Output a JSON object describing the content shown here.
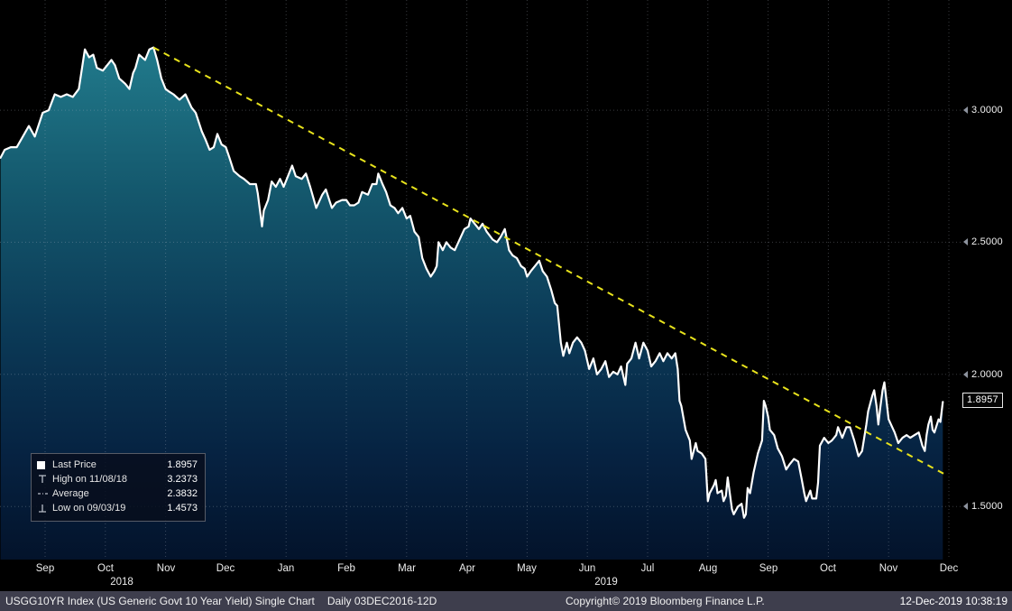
{
  "chart_data": {
    "type": "line",
    "title": "USGG10YR Index (US Generic Govt 10 Year Yield) Single Chart",
    "period": "Daily 03DEC2016-12D",
    "x_unit": "months since 2018-09-01 (fractional)",
    "x_axis": {
      "months": [
        "Sep",
        "Oct",
        "Nov",
        "Dec",
        "Jan",
        "Feb",
        "Mar",
        "Apr",
        "May",
        "Jun",
        "Jul",
        "Aug",
        "Sep",
        "Oct",
        "Nov",
        "Dec"
      ],
      "years": [
        {
          "label": "2018",
          "center_m": 1.74
        },
        {
          "label": "2019",
          "center_m": 9.78
        }
      ]
    },
    "y_axis": {
      "range": [
        1.299,
        3.417
      ],
      "ticks": [
        {
          "value": 3.0,
          "label": "3.0000"
        },
        {
          "value": 2.5,
          "label": "2.5000"
        },
        {
          "value": 2.0,
          "label": "2.0000"
        },
        {
          "value": 1.5,
          "label": "1.5000"
        }
      ]
    },
    "series": [
      {
        "name": "Last Price",
        "color": "#ffffff",
        "points": [
          [
            -0.27,
            2.82
          ],
          [
            -0.2,
            2.85
          ],
          [
            -0.1,
            2.86
          ],
          [
            0,
            2.86
          ],
          [
            0.1,
            2.9
          ],
          [
            0.2,
            2.94
          ],
          [
            0.3,
            2.9
          ],
          [
            0.43,
            2.99
          ],
          [
            0.53,
            3.0
          ],
          [
            0.63,
            3.06
          ],
          [
            0.73,
            3.05
          ],
          [
            0.83,
            3.06
          ],
          [
            0.93,
            3.05
          ],
          [
            1.03,
            3.08
          ],
          [
            1.13,
            3.23
          ],
          [
            1.2,
            3.2
          ],
          [
            1.27,
            3.21
          ],
          [
            1.33,
            3.16
          ],
          [
            1.43,
            3.15
          ],
          [
            1.5,
            3.17
          ],
          [
            1.57,
            3.19
          ],
          [
            1.63,
            3.17
          ],
          [
            1.7,
            3.12
          ],
          [
            1.8,
            3.1
          ],
          [
            1.87,
            3.08
          ],
          [
            1.93,
            3.14
          ],
          [
            1.97,
            3.16
          ],
          [
            2.03,
            3.21
          ],
          [
            2.13,
            3.19
          ],
          [
            2.2,
            3.23
          ],
          [
            2.27,
            3.2373
          ],
          [
            2.33,
            3.19
          ],
          [
            2.4,
            3.12
          ],
          [
            2.47,
            3.08
          ],
          [
            2.53,
            3.07
          ],
          [
            2.6,
            3.06
          ],
          [
            2.7,
            3.04
          ],
          [
            2.8,
            3.06
          ],
          [
            2.9,
            3.01
          ],
          [
            2.97,
            2.99
          ],
          [
            3.07,
            2.92
          ],
          [
            3.13,
            2.89
          ],
          [
            3.2,
            2.85
          ],
          [
            3.27,
            2.86
          ],
          [
            3.33,
            2.91
          ],
          [
            3.4,
            2.87
          ],
          [
            3.47,
            2.86
          ],
          [
            3.53,
            2.82
          ],
          [
            3.6,
            2.77
          ],
          [
            3.7,
            2.75
          ],
          [
            3.77,
            2.74
          ],
          [
            3.87,
            2.72
          ],
          [
            3.97,
            2.72
          ],
          [
            4.0,
            2.685
          ],
          [
            4.07,
            2.56
          ],
          [
            4.1,
            2.62
          ],
          [
            4.17,
            2.66
          ],
          [
            4.23,
            2.73
          ],
          [
            4.3,
            2.71
          ],
          [
            4.37,
            2.74
          ],
          [
            4.43,
            2.71
          ],
          [
            4.5,
            2.75
          ],
          [
            4.57,
            2.79
          ],
          [
            4.63,
            2.75
          ],
          [
            4.73,
            2.74
          ],
          [
            4.8,
            2.76
          ],
          [
            4.87,
            2.71
          ],
          [
            4.97,
            2.63
          ],
          [
            5.07,
            2.68
          ],
          [
            5.13,
            2.7
          ],
          [
            5.2,
            2.65
          ],
          [
            5.23,
            2.63
          ],
          [
            5.3,
            2.65
          ],
          [
            5.4,
            2.66
          ],
          [
            5.47,
            2.66
          ],
          [
            5.53,
            2.64
          ],
          [
            5.6,
            2.64
          ],
          [
            5.67,
            2.65
          ],
          [
            5.73,
            2.69
          ],
          [
            5.83,
            2.68
          ],
          [
            5.9,
            2.72
          ],
          [
            5.97,
            2.72
          ],
          [
            6.0,
            2.76
          ],
          [
            6.07,
            2.72
          ],
          [
            6.13,
            2.69
          ],
          [
            6.2,
            2.64
          ],
          [
            6.27,
            2.63
          ],
          [
            6.33,
            2.61
          ],
          [
            6.4,
            2.63
          ],
          [
            6.47,
            2.59
          ],
          [
            6.53,
            2.6
          ],
          [
            6.6,
            2.54
          ],
          [
            6.67,
            2.52
          ],
          [
            6.73,
            2.44
          ],
          [
            6.8,
            2.4
          ],
          [
            6.87,
            2.37
          ],
          [
            6.93,
            2.39
          ],
          [
            6.97,
            2.41
          ],
          [
            7.0,
            2.5
          ],
          [
            7.07,
            2.47
          ],
          [
            7.13,
            2.5
          ],
          [
            7.2,
            2.48
          ],
          [
            7.27,
            2.47
          ],
          [
            7.33,
            2.5
          ],
          [
            7.43,
            2.55
          ],
          [
            7.5,
            2.56
          ],
          [
            7.53,
            2.59
          ],
          [
            7.6,
            2.57
          ],
          [
            7.67,
            2.55
          ],
          [
            7.73,
            2.57
          ],
          [
            7.8,
            2.54
          ],
          [
            7.9,
            2.51
          ],
          [
            7.97,
            2.5
          ],
          [
            8.03,
            2.52
          ],
          [
            8.1,
            2.55
          ],
          [
            8.17,
            2.47
          ],
          [
            8.23,
            2.45
          ],
          [
            8.3,
            2.44
          ],
          [
            8.37,
            2.41
          ],
          [
            8.43,
            2.4
          ],
          [
            8.47,
            2.37
          ],
          [
            8.53,
            2.39
          ],
          [
            8.6,
            2.41
          ],
          [
            8.67,
            2.43
          ],
          [
            8.73,
            2.39
          ],
          [
            8.8,
            2.37
          ],
          [
            8.87,
            2.32
          ],
          [
            8.93,
            2.27
          ],
          [
            8.97,
            2.26
          ],
          [
            9.03,
            2.12
          ],
          [
            9.07,
            2.07
          ],
          [
            9.13,
            2.12
          ],
          [
            9.17,
            2.08
          ],
          [
            9.23,
            2.12
          ],
          [
            9.3,
            2.14
          ],
          [
            9.37,
            2.12
          ],
          [
            9.43,
            2.09
          ],
          [
            9.5,
            2.02
          ],
          [
            9.57,
            2.06
          ],
          [
            9.63,
            2.0
          ],
          [
            9.7,
            2.02
          ],
          [
            9.77,
            2.05
          ],
          [
            9.83,
            1.99
          ],
          [
            9.9,
            2.01
          ],
          [
            9.97,
            2.0
          ],
          [
            10.03,
            2.03
          ],
          [
            10.1,
            1.96
          ],
          [
            10.13,
            2.04
          ],
          [
            10.2,
            2.06
          ],
          [
            10.27,
            2.12
          ],
          [
            10.33,
            2.06
          ],
          [
            10.4,
            2.12
          ],
          [
            10.47,
            2.09
          ],
          [
            10.53,
            2.03
          ],
          [
            10.6,
            2.05
          ],
          [
            10.67,
            2.08
          ],
          [
            10.73,
            2.05
          ],
          [
            10.8,
            2.08
          ],
          [
            10.87,
            2.06
          ],
          [
            10.93,
            2.08
          ],
          [
            10.97,
            2.02
          ],
          [
            11.0,
            1.9
          ],
          [
            11.03,
            1.88
          ],
          [
            11.1,
            1.79
          ],
          [
            11.17,
            1.75
          ],
          [
            11.2,
            1.68
          ],
          [
            11.27,
            1.74
          ],
          [
            11.3,
            1.71
          ],
          [
            11.37,
            1.7
          ],
          [
            11.43,
            1.68
          ],
          [
            11.47,
            1.52
          ],
          [
            11.5,
            1.55
          ],
          [
            11.57,
            1.58
          ],
          [
            11.6,
            1.6
          ],
          [
            11.63,
            1.55
          ],
          [
            11.7,
            1.56
          ],
          [
            11.73,
            1.52
          ],
          [
            11.77,
            1.54
          ],
          [
            11.8,
            1.61
          ],
          [
            11.87,
            1.49
          ],
          [
            11.9,
            1.47
          ],
          [
            11.97,
            1.5
          ],
          [
            12.03,
            1.51
          ],
          [
            12.07,
            1.4573
          ],
          [
            12.1,
            1.47
          ],
          [
            12.13,
            1.57
          ],
          [
            12.17,
            1.55
          ],
          [
            12.23,
            1.63
          ],
          [
            12.3,
            1.7
          ],
          [
            12.37,
            1.75
          ],
          [
            12.4,
            1.9
          ],
          [
            12.43,
            1.88
          ],
          [
            12.47,
            1.84
          ],
          [
            12.5,
            1.79
          ],
          [
            12.57,
            1.77
          ],
          [
            12.63,
            1.72
          ],
          [
            12.7,
            1.69
          ],
          [
            12.77,
            1.64
          ],
          [
            12.83,
            1.66
          ],
          [
            12.9,
            1.68
          ],
          [
            12.97,
            1.67
          ],
          [
            13.03,
            1.6
          ],
          [
            13.07,
            1.55
          ],
          [
            13.1,
            1.52
          ],
          [
            13.17,
            1.56
          ],
          [
            13.2,
            1.53
          ],
          [
            13.27,
            1.53
          ],
          [
            13.3,
            1.59
          ],
          [
            13.33,
            1.73
          ],
          [
            13.4,
            1.76
          ],
          [
            13.47,
            1.74
          ],
          [
            13.53,
            1.75
          ],
          [
            13.6,
            1.77
          ],
          [
            13.63,
            1.8
          ],
          [
            13.7,
            1.76
          ],
          [
            13.77,
            1.8
          ],
          [
            13.83,
            1.8
          ],
          [
            13.9,
            1.75
          ],
          [
            13.97,
            1.69
          ],
          [
            14.03,
            1.71
          ],
          [
            14.1,
            1.81
          ],
          [
            14.13,
            1.86
          ],
          [
            14.2,
            1.92
          ],
          [
            14.23,
            1.94
          ],
          [
            14.27,
            1.88
          ],
          [
            14.3,
            1.81
          ],
          [
            14.33,
            1.87
          ],
          [
            14.37,
            1.94
          ],
          [
            14.4,
            1.97
          ],
          [
            14.47,
            1.83
          ],
          [
            14.53,
            1.8
          ],
          [
            14.57,
            1.78
          ],
          [
            14.63,
            1.74
          ],
          [
            14.7,
            1.76
          ],
          [
            14.77,
            1.77
          ],
          [
            14.83,
            1.76
          ],
          [
            14.9,
            1.77
          ],
          [
            14.97,
            1.78
          ],
          [
            15.03,
            1.73
          ],
          [
            15.07,
            1.71
          ],
          [
            15.1,
            1.77
          ],
          [
            15.13,
            1.81
          ],
          [
            15.17,
            1.84
          ],
          [
            15.2,
            1.79
          ],
          [
            15.23,
            1.78
          ],
          [
            15.3,
            1.83
          ],
          [
            15.33,
            1.82
          ],
          [
            15.37,
            1.8957
          ]
        ]
      }
    ],
    "trendline": {
      "color": "#e8e31c",
      "style": "dashed",
      "from": [
        2.27,
        3.2373
      ],
      "to": [
        15.44,
        1.617
      ]
    },
    "markers": {
      "high": {
        "date": "11/08/18",
        "value": 3.2373
      },
      "average": 2.3832,
      "low": {
        "date": "09/03/19",
        "value": 1.4573
      }
    },
    "last_price": {
      "value": 1.8957,
      "label": "1.8957"
    },
    "style": {
      "background": "#000000",
      "grid_color": "rgba(185,192,204,0.30)",
      "line_color": "#ffffff",
      "fill_gradient": [
        {
          "offset": 0,
          "color": "#217a8b"
        },
        {
          "offset": 0.28,
          "color": "#14586d"
        },
        {
          "offset": 0.55,
          "color": "#0b3a57"
        },
        {
          "offset": 0.8,
          "color": "#062241"
        },
        {
          "offset": 1,
          "color": "#03132b"
        }
      ]
    }
  },
  "legend": {
    "rows": [
      {
        "icon": "last-price-swatch",
        "label": "Last Price",
        "value": "1.8957"
      },
      {
        "icon": "high-marker",
        "label": "High on 11/08/18",
        "value": "3.2373"
      },
      {
        "icon": "average-line",
        "label": "Average",
        "value": "2.3832"
      },
      {
        "icon": "low-marker",
        "label": "Low on 09/03/19",
        "value": "1.4573"
      }
    ]
  },
  "footer": {
    "instrument": "USGG10YR Index (US Generic Govt 10 Year Yield) Single Chart",
    "period": "Daily 03DEC2016-12D",
    "copyright": "Copyright© 2019 Bloomberg Finance L.P.",
    "timestamp": "12-Dec-2019 10:38:19"
  }
}
